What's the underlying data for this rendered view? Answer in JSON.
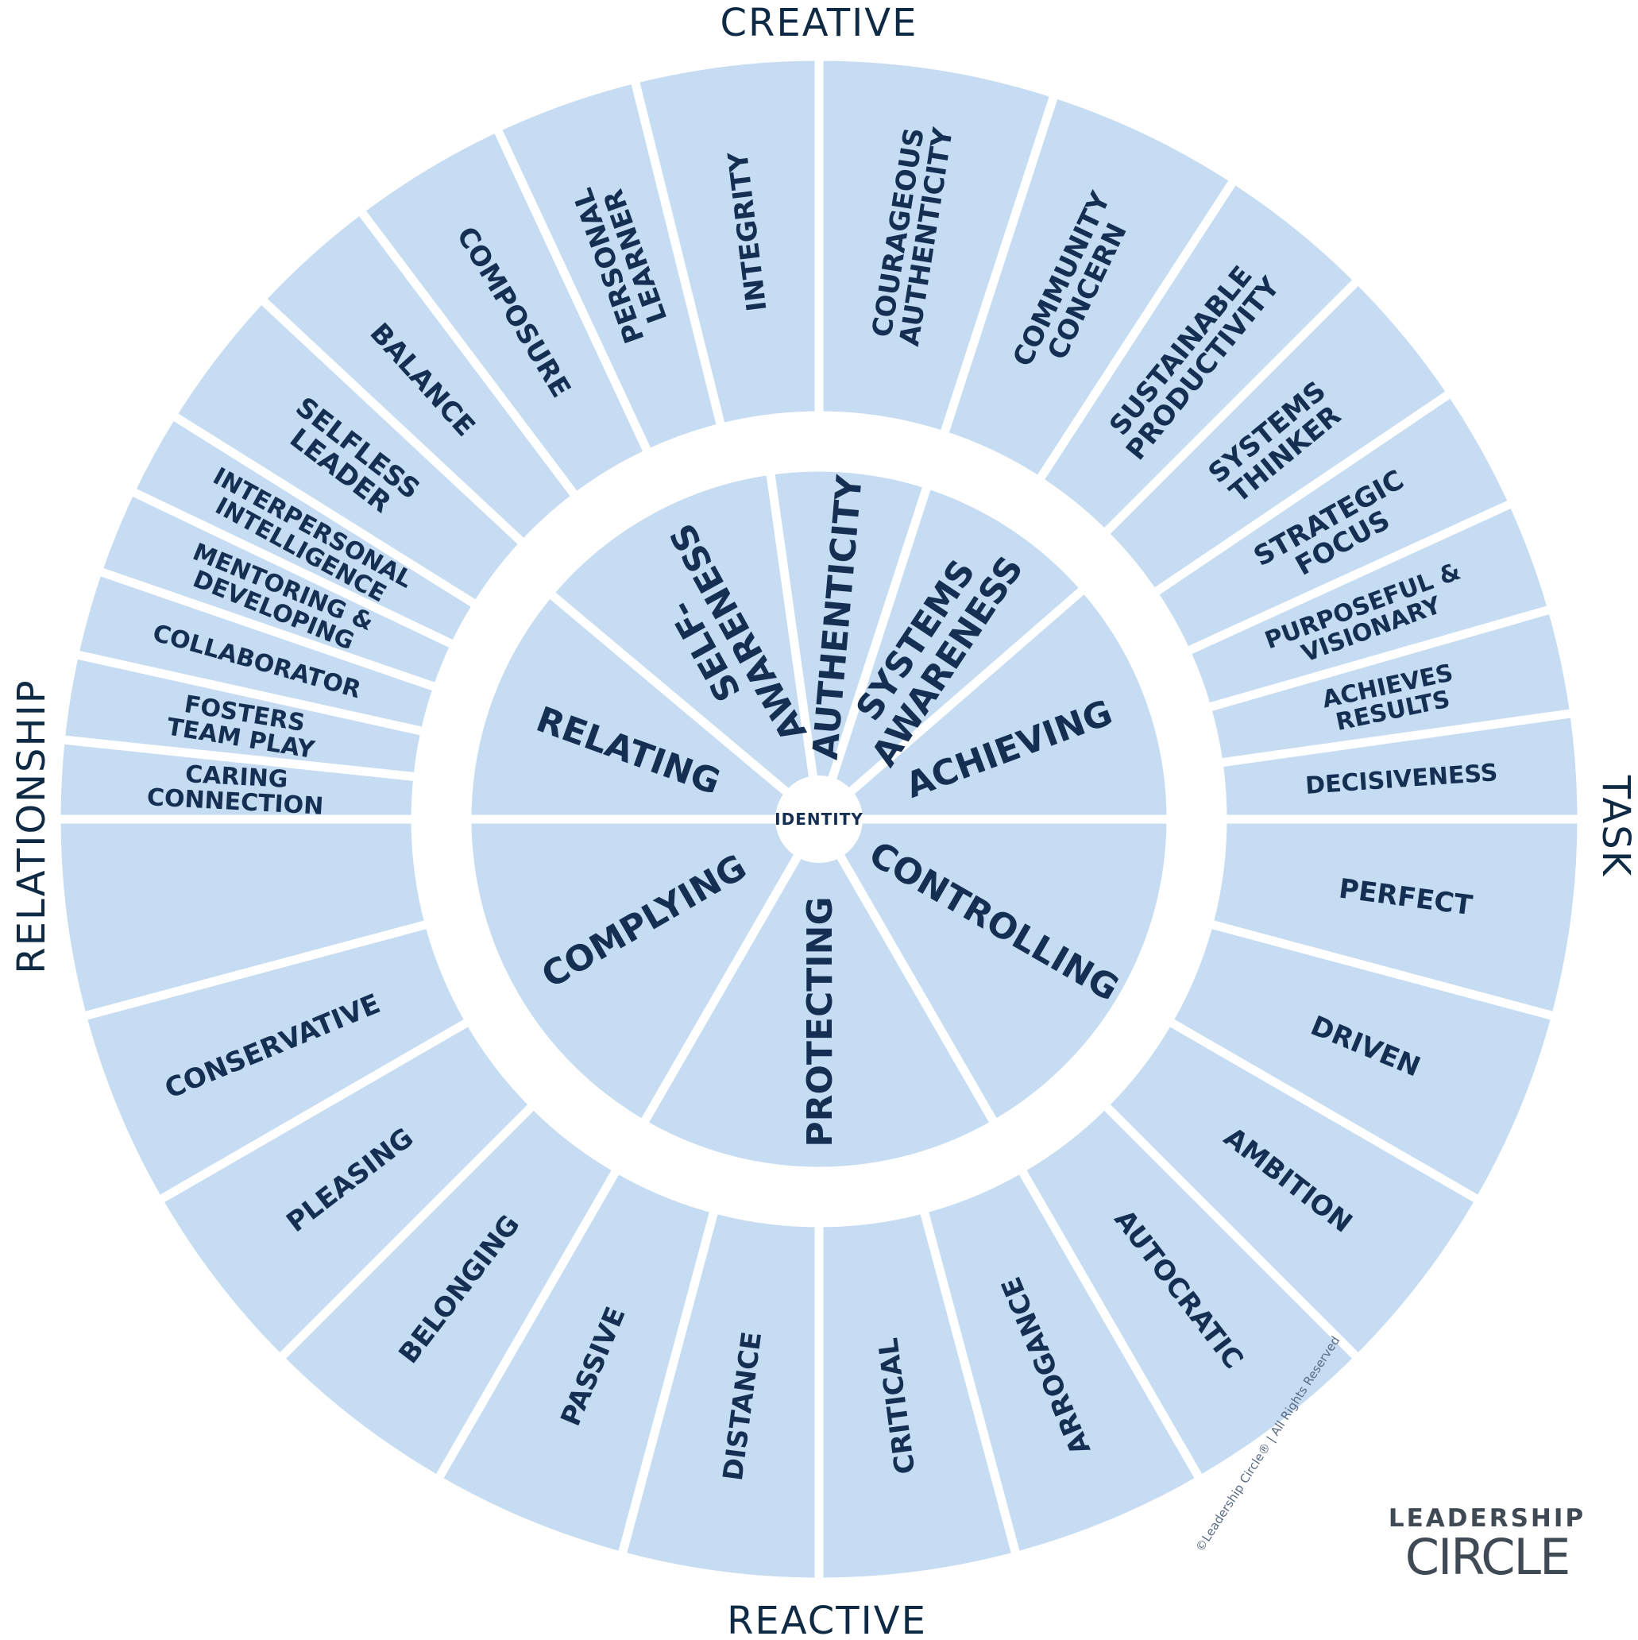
{
  "axes": {
    "top": "CREATIVE",
    "bottom": "REACTIVE",
    "left": "RELATIONSHIP",
    "right": "TASK"
  },
  "center": "IDENTITY",
  "colors": {
    "segment": "#c6dcf2",
    "text": "#152f52",
    "gap": "#ffffff"
  },
  "inner_ring": [
    {
      "label": [
        "AUTHENTICITY"
      ],
      "angles": [
        -98,
        -72
      ]
    },
    {
      "label": [
        "SYSTEMS",
        "AWARENESS"
      ],
      "angles": [
        -72,
        -41
      ]
    },
    {
      "label": [
        "ACHIEVING"
      ],
      "angles": [
        -41,
        0
      ]
    },
    {
      "label": [
        "CONTROLLING"
      ],
      "angles": [
        0,
        60
      ]
    },
    {
      "label": [
        "PROTECTING"
      ],
      "angles": [
        60,
        120
      ]
    },
    {
      "label": [
        "COMPLYING"
      ],
      "angles": [
        120,
        180
      ]
    },
    {
      "label": [
        "RELATING"
      ],
      "angles": [
        180,
        220
      ]
    },
    {
      "label": [
        "SELF-",
        "AWARENESS"
      ],
      "angles": [
        220,
        262
      ]
    }
  ],
  "outer_ring": [
    {
      "label": [
        "COURAGEOUS",
        "AUTHENTICITY"
      ],
      "angles": [
        -90,
        -72
      ]
    },
    {
      "label": [
        "COMMUNITY",
        "CONCERN"
      ],
      "angles": [
        -72,
        -57
      ]
    },
    {
      "label": [
        "SUSTAINABLE",
        "PRODUCTIVITY"
      ],
      "angles": [
        -57,
        -45
      ]
    },
    {
      "label": [
        "SYSTEMS",
        "THINKER"
      ],
      "angles": [
        -45,
        -34
      ]
    },
    {
      "label": [
        "STRATEGIC",
        "FOCUS"
      ],
      "angles": [
        -34,
        -24.5
      ]
    },
    {
      "label": [
        "PURPOSEFUL &",
        "VISIONARY"
      ],
      "angles": [
        -24.5,
        -16
      ]
    },
    {
      "label": [
        "ACHIEVES",
        "RESULTS"
      ],
      "angles": [
        -16,
        -8
      ]
    },
    {
      "label": [
        "DECISIVENESS"
      ],
      "angles": [
        -8,
        0
      ]
    },
    {
      "label": [
        "PERFECT"
      ],
      "angles": [
        0,
        15
      ]
    },
    {
      "label": [
        "DRIVEN"
      ],
      "angles": [
        15,
        30
      ]
    },
    {
      "label": [
        "AMBITION"
      ],
      "angles": [
        30,
        45
      ]
    },
    {
      "label": [
        "AUTOCRATIC"
      ],
      "angles": [
        45,
        60
      ]
    },
    {
      "label": [
        "ARROGANCE"
      ],
      "angles": [
        60,
        75
      ]
    },
    {
      "label": [
        "CRITICAL"
      ],
      "angles": [
        75,
        90
      ]
    },
    {
      "label": [
        "DISTANCE"
      ],
      "angles": [
        90,
        105
      ]
    },
    {
      "label": [
        "PASSIVE"
      ],
      "angles": [
        105,
        120
      ]
    },
    {
      "label": [
        "BELONGING"
      ],
      "angles": [
        120,
        135
      ]
    },
    {
      "label": [
        "PLEASING"
      ],
      "angles": [
        135,
        150
      ]
    },
    {
      "label": [
        "CONSERVATIVE"
      ],
      "angles": [
        150,
        165
      ]
    },
    {
      "label": [
        "CARING",
        "CONNECTION"
      ],
      "angles": [
        180,
        186
      ]
    },
    {
      "label": [
        "FOSTERS",
        "TEAM PLAY"
      ],
      "angles": [
        186,
        192.5
      ]
    },
    {
      "label": [
        "COLLABORATOR"
      ],
      "angles": [
        192.5,
        199
      ]
    },
    {
      "label": [
        "MENTORING &",
        "DEVELOPING"
      ],
      "angles": [
        199,
        205.5
      ]
    },
    {
      "label": [
        "INTERPERSONAL",
        "INTELLIGENCE"
      ],
      "angles": [
        205.5,
        212
      ]
    },
    {
      "label": [
        "SELFLESS",
        "LEADER"
      ],
      "angles": [
        212,
        223
      ]
    },
    {
      "label": [
        "BALANCE"
      ],
      "angles": [
        223,
        233
      ]
    },
    {
      "label": [
        "COMPOSURE"
      ],
      "angles": [
        233,
        245
      ]
    },
    {
      "label": [
        "PERSONAL",
        "LEARNER"
      ],
      "angles": [
        245,
        256
      ]
    },
    {
      "label": [
        "INTEGRITY"
      ],
      "angles": [
        256,
        270
      ]
    }
  ],
  "outer_extra": {
    "angles": [
      165,
      180
    ]
  },
  "copyright": "©Leadership Circle®  |  All Rights Reserved",
  "logo": {
    "line1": "LEADERSHIP",
    "line2": "CIRCLE"
  }
}
